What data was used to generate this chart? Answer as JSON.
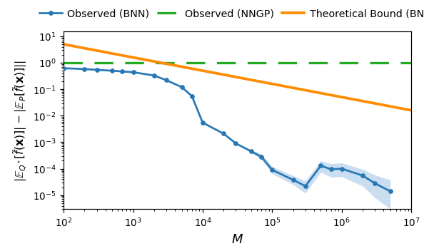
{
  "title": "",
  "xlabel": "$M$",
  "xlim": [
    100.0,
    10000000.0
  ],
  "ylim": [
    3e-06,
    15
  ],
  "bnn_x": [
    100,
    200,
    300,
    500,
    700,
    1000,
    2000,
    3000,
    5000,
    7000,
    10000,
    20000,
    30000,
    50000,
    70000,
    100000,
    200000,
    300000,
    500000,
    700000,
    1000000,
    2000000,
    3000000,
    5000000
  ],
  "bnn_y": [
    0.62,
    0.58,
    0.54,
    0.5,
    0.47,
    0.44,
    0.33,
    0.22,
    0.12,
    0.055,
    0.0055,
    0.0021,
    0.0009,
    0.00045,
    0.00028,
    9e-05,
    3.8e-05,
    2.2e-05,
    0.00013,
    9.5e-05,
    0.0001,
    5.5e-05,
    2.8e-05,
    1.4e-05
  ],
  "bnn_y_lower": [
    0.62,
    0.58,
    0.54,
    0.5,
    0.47,
    0.44,
    0.33,
    0.22,
    0.12,
    0.055,
    0.0055,
    0.0021,
    0.0009,
    0.0004,
    0.00022,
    6.5e-05,
    2.5e-05,
    1.2e-05,
    7.5e-05,
    4.8e-05,
    5e-05,
    2.2e-05,
    8e-06,
    3e-06
  ],
  "bnn_y_upper": [
    0.62,
    0.58,
    0.54,
    0.5,
    0.47,
    0.44,
    0.33,
    0.22,
    0.12,
    0.055,
    0.0055,
    0.0021,
    0.0009,
    0.00052,
    0.00036,
    0.00012,
    5.5e-05,
    3.5e-05,
    0.0002,
    0.000155,
    0.000165,
    9.5e-05,
    5.8e-05,
    3.8e-05
  ],
  "shade_start_idx": 11,
  "nngp_y": 1.0,
  "bound_x_start": 100.0,
  "bound_x_end": 10000000.0,
  "bound_y_start": 5.0,
  "bound_y_end": 0.016,
  "bnn_color": "#2878b5",
  "bnn_fill_color": "#a8c8e8",
  "nngp_color": "#22aa22",
  "bound_color": "#ff8c00",
  "legend_fontsize": 9.5,
  "tick_labelsize": 9,
  "axis_labelsize": 12
}
